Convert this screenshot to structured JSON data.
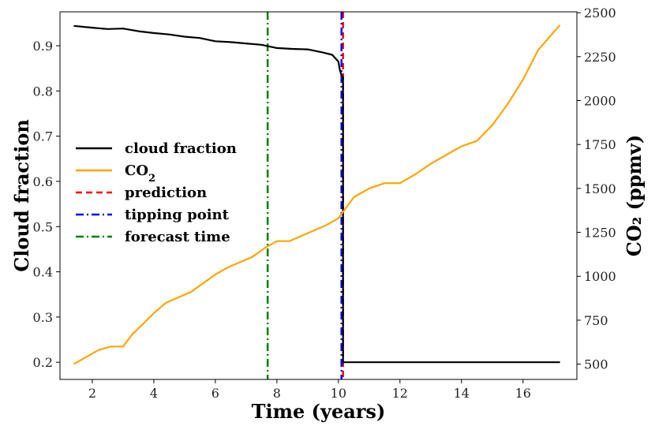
{
  "chart_data": {
    "type": "line",
    "title": "",
    "xlabel": "Time (years)",
    "ylabel_left": "Cloud fraction",
    "ylabel_right": "CO₂ (ppmv)",
    "xlim": [
      0.95,
      17.75
    ],
    "ylim_left": [
      0.162,
      0.975
    ],
    "ylim_right": [
      413,
      2505
    ],
    "x_ticks": [
      2,
      4,
      6,
      8,
      10,
      12,
      14,
      16
    ],
    "y_left_ticks": [
      0.2,
      0.3,
      0.4,
      0.5,
      0.6,
      0.7,
      0.8,
      0.9
    ],
    "y_right_ticks": [
      500,
      750,
      1000,
      1250,
      1500,
      1750,
      2000,
      2250,
      2500
    ],
    "grid": false,
    "legend": {
      "placement": "center-left",
      "entries": [
        {
          "label": "cloud fraction",
          "color": "#000000",
          "style": "solid"
        },
        {
          "label": "CO",
          "sub": "2",
          "color": "#FFA500",
          "style": "solid"
        },
        {
          "label": "prediction",
          "color": "#FF0000",
          "style": "dashed"
        },
        {
          "label": "tipping point",
          "color": "#0000FF",
          "style": "dashdot"
        },
        {
          "label": "forecast time",
          "color": "#008000",
          "style": "dashdot"
        }
      ]
    },
    "series": [
      {
        "name": "cloud fraction",
        "axis": "left",
        "color": "#000000",
        "x": [
          1.4,
          2.0,
          2.5,
          3.0,
          3.5,
          4.0,
          4.5,
          5.0,
          5.5,
          6.0,
          6.5,
          7.0,
          7.5,
          8.0,
          8.5,
          9.0,
          9.5,
          9.8,
          10.0,
          10.05,
          10.1,
          10.15,
          10.15,
          17.2
        ],
        "y": [
          0.944,
          0.94,
          0.937,
          0.938,
          0.932,
          0.928,
          0.925,
          0.92,
          0.917,
          0.91,
          0.908,
          0.905,
          0.902,
          0.895,
          0.893,
          0.892,
          0.885,
          0.88,
          0.865,
          0.845,
          0.835,
          0.83,
          0.2,
          0.2
        ]
      },
      {
        "name": "CO",
        "axis": "right",
        "color": "#FFA500",
        "x": [
          1.4,
          1.8,
          2.2,
          2.6,
          3.0,
          3.3,
          3.6,
          4.0,
          4.4,
          4.8,
          5.2,
          5.6,
          6.0,
          6.4,
          6.8,
          7.2,
          7.6,
          8.0,
          8.4,
          8.8,
          9.2,
          9.6,
          10.0,
          10.5,
          11.0,
          11.5,
          12.0,
          12.5,
          13.0,
          13.5,
          14.0,
          14.5,
          15.0,
          15.5,
          16.0,
          16.5,
          17.2
        ],
        "y": [
          500,
          540,
          580,
          600,
          600,
          670,
          720,
          790,
          850,
          880,
          910,
          960,
          1010,
          1050,
          1080,
          1110,
          1160,
          1200,
          1200,
          1230,
          1260,
          1290,
          1330,
          1450,
          1500,
          1530,
          1530,
          1580,
          1640,
          1690,
          1740,
          1770,
          1860,
          1980,
          2120,
          2290,
          2430
        ]
      }
    ],
    "vertical_lines": [
      {
        "name": "forecast time",
        "x": 7.7,
        "color": "#008000",
        "style": "dashdot"
      },
      {
        "name": "prediction",
        "x": 10.15,
        "color": "#FF0000",
        "style": "dashed"
      },
      {
        "name": "tipping point",
        "x": 10.1,
        "color": "#0000FF",
        "style": "dashdot"
      }
    ]
  }
}
